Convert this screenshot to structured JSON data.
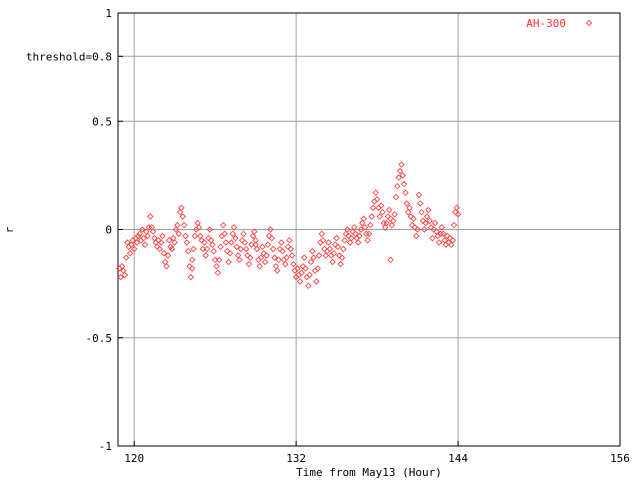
{
  "chart_data": {
    "type": "scatter",
    "title": "",
    "xlabel": "Time from May13 (Hour)",
    "ylabel": "r",
    "xlim": [
      118.8,
      156
    ],
    "ylim": [
      -1,
      1
    ],
    "x_ticks": [
      120,
      132,
      144,
      156
    ],
    "x_tick_labels": [
      "120",
      "132",
      "144",
      "156"
    ],
    "y_ticks": [
      -1,
      -0.5,
      0,
      0.5,
      0.8,
      1
    ],
    "y_tick_labels": [
      "-1",
      "-0.5",
      "0",
      "0.5",
      "threshold=0.8",
      "1"
    ],
    "grid": true,
    "legend_position": "top-right",
    "series": [
      {
        "name": "AH-300",
        "color": "#ff4444",
        "marker": "diamond",
        "points": [
          [
            118.9,
            -0.18
          ],
          [
            119.0,
            -0.22
          ],
          [
            119.1,
            -0.17
          ],
          [
            119.2,
            -0.19
          ],
          [
            119.3,
            -0.21
          ],
          [
            119.4,
            -0.13
          ],
          [
            119.5,
            -0.06
          ],
          [
            119.6,
            -0.08
          ],
          [
            119.7,
            -0.11
          ],
          [
            119.8,
            -0.07
          ],
          [
            119.9,
            -0.05
          ],
          [
            120.0,
            -0.09
          ],
          [
            120.1,
            -0.04
          ],
          [
            120.2,
            -0.06
          ],
          [
            120.3,
            -0.03
          ],
          [
            120.4,
            -0.02
          ],
          [
            120.5,
            -0.05
          ],
          [
            120.6,
            0.0
          ],
          [
            120.7,
            -0.04
          ],
          [
            120.8,
            -0.07
          ],
          [
            120.9,
            -0.01
          ],
          [
            121.0,
            -0.03
          ],
          [
            121.1,
            0.01
          ],
          [
            121.2,
            0.06
          ],
          [
            121.3,
            0.01
          ],
          [
            121.4,
            -0.01
          ],
          [
            121.5,
            -0.04
          ],
          [
            121.6,
            -0.06
          ],
          [
            121.7,
            -0.08
          ],
          [
            121.8,
            -0.05
          ],
          [
            121.9,
            -0.09
          ],
          [
            122.0,
            -0.06
          ],
          [
            122.1,
            -0.03
          ],
          [
            122.2,
            -0.11
          ],
          [
            122.3,
            -0.15
          ],
          [
            122.4,
            -0.17
          ],
          [
            122.5,
            -0.12
          ],
          [
            122.6,
            -0.05
          ],
          [
            122.7,
            -0.08
          ],
          [
            122.8,
            -0.09
          ],
          [
            122.9,
            -0.04
          ],
          [
            123.0,
            -0.06
          ],
          [
            123.1,
            0.0
          ],
          [
            123.2,
            0.02
          ],
          [
            123.3,
            -0.02
          ],
          [
            123.4,
            0.08
          ],
          [
            123.5,
            0.1
          ],
          [
            123.6,
            0.06
          ],
          [
            123.7,
            0.02
          ],
          [
            123.8,
            -0.03
          ],
          [
            123.9,
            -0.06
          ],
          [
            124.0,
            -0.1
          ],
          [
            124.1,
            -0.17
          ],
          [
            124.2,
            -0.22
          ],
          [
            124.3,
            -0.14
          ],
          [
            124.4,
            -0.09
          ],
          [
            124.5,
            -0.03
          ],
          [
            124.6,
            0.0
          ],
          [
            124.7,
            0.03
          ],
          [
            124.8,
            0.01
          ],
          [
            124.9,
            -0.03
          ],
          [
            125.0,
            -0.05
          ],
          [
            125.1,
            -0.09
          ],
          [
            125.2,
            -0.06
          ],
          [
            125.3,
            -0.12
          ],
          [
            125.4,
            -0.09
          ],
          [
            125.5,
            -0.04
          ],
          [
            125.6,
            0.0
          ],
          [
            125.7,
            -0.05
          ],
          [
            125.8,
            -0.07
          ],
          [
            125.9,
            -0.1
          ],
          [
            126.0,
            -0.14
          ],
          [
            126.1,
            -0.17
          ],
          [
            126.2,
            -0.2
          ],
          [
            126.3,
            -0.14
          ],
          [
            126.4,
            -0.08
          ],
          [
            126.5,
            -0.03
          ],
          [
            126.6,
            0.02
          ],
          [
            126.7,
            -0.02
          ],
          [
            126.8,
            -0.06
          ],
          [
            126.9,
            -0.1
          ],
          [
            127.0,
            -0.15
          ],
          [
            127.1,
            -0.11
          ],
          [
            127.2,
            -0.06
          ],
          [
            127.3,
            -0.02
          ],
          [
            127.4,
            0.01
          ],
          [
            127.5,
            -0.04
          ],
          [
            127.6,
            -0.08
          ],
          [
            127.7,
            -0.12
          ],
          [
            127.8,
            -0.14
          ],
          [
            127.9,
            -0.09
          ],
          [
            128.0,
            -0.05
          ],
          [
            128.1,
            -0.02
          ],
          [
            128.2,
            -0.06
          ],
          [
            128.3,
            -0.09
          ],
          [
            128.4,
            -0.12
          ],
          [
            128.5,
            -0.16
          ],
          [
            128.6,
            -0.13
          ],
          [
            128.7,
            -0.07
          ],
          [
            128.8,
            -0.03
          ],
          [
            128.9,
            -0.01
          ],
          [
            129.0,
            -0.05
          ],
          [
            129.1,
            -0.09
          ],
          [
            129.2,
            -0.14
          ],
          [
            129.3,
            -0.17
          ],
          [
            129.4,
            -0.13
          ],
          [
            129.5,
            -0.08
          ],
          [
            129.6,
            -0.11
          ],
          [
            129.7,
            -0.15
          ],
          [
            129.8,
            -0.12
          ],
          [
            129.9,
            -0.07
          ],
          [
            130.0,
            -0.03
          ],
          [
            130.1,
            0.0
          ],
          [
            130.2,
            -0.04
          ],
          [
            130.3,
            -0.09
          ],
          [
            130.4,
            -0.13
          ],
          [
            130.5,
            -0.17
          ],
          [
            130.6,
            -0.19
          ],
          [
            130.7,
            -0.14
          ],
          [
            130.8,
            -0.09
          ],
          [
            130.9,
            -0.06
          ],
          [
            131.0,
            -0.1
          ],
          [
            131.1,
            -0.14
          ],
          [
            131.2,
            -0.16
          ],
          [
            131.3,
            -0.13
          ],
          [
            131.4,
            -0.08
          ],
          [
            131.5,
            -0.05
          ],
          [
            131.6,
            -0.09
          ],
          [
            131.7,
            -0.12
          ],
          [
            131.8,
            -0.16
          ],
          [
            131.9,
            -0.19
          ],
          [
            132.0,
            -0.22
          ],
          [
            132.1,
            -0.18
          ],
          [
            132.2,
            -0.21
          ],
          [
            132.3,
            -0.24
          ],
          [
            132.4,
            -0.2
          ],
          [
            132.5,
            -0.17
          ],
          [
            132.6,
            -0.13
          ],
          [
            132.7,
            -0.18
          ],
          [
            132.8,
            -0.22
          ],
          [
            132.9,
            -0.26
          ],
          [
            133.0,
            -0.21
          ],
          [
            133.1,
            -0.15
          ],
          [
            133.2,
            -0.1
          ],
          [
            133.3,
            -0.13
          ],
          [
            133.4,
            -0.19
          ],
          [
            133.5,
            -0.24
          ],
          [
            133.6,
            -0.18
          ],
          [
            133.7,
            -0.12
          ],
          [
            133.8,
            -0.06
          ],
          [
            133.9,
            -0.02
          ],
          [
            134.0,
            -0.05
          ],
          [
            134.1,
            -0.09
          ],
          [
            134.2,
            -0.12
          ],
          [
            134.3,
            -0.1
          ],
          [
            134.4,
            -0.06
          ],
          [
            134.5,
            -0.09
          ],
          [
            134.6,
            -0.12
          ],
          [
            134.7,
            -0.15
          ],
          [
            134.8,
            -0.11
          ],
          [
            134.9,
            -0.07
          ],
          [
            135.0,
            -0.04
          ],
          [
            135.1,
            -0.08
          ],
          [
            135.2,
            -0.12
          ],
          [
            135.3,
            -0.16
          ],
          [
            135.4,
            -0.13
          ],
          [
            135.5,
            -0.09
          ],
          [
            135.6,
            -0.05
          ],
          [
            135.7,
            -0.02
          ],
          [
            135.8,
            0.0
          ],
          [
            135.9,
            -0.03
          ],
          [
            136.0,
            -0.06
          ],
          [
            136.1,
            -0.04
          ],
          [
            136.2,
            -0.01
          ],
          [
            136.3,
            0.01
          ],
          [
            136.4,
            -0.02
          ],
          [
            136.5,
            -0.04
          ],
          [
            136.6,
            -0.06
          ],
          [
            136.7,
            -0.03
          ],
          [
            136.8,
            0.0
          ],
          [
            136.9,
            0.03
          ],
          [
            137.0,
            0.05
          ],
          [
            137.1,
            0.01
          ],
          [
            137.2,
            -0.02
          ],
          [
            137.3,
            -0.05
          ],
          [
            137.4,
            -0.02
          ],
          [
            137.5,
            0.02
          ],
          [
            137.6,
            0.06
          ],
          [
            137.7,
            0.1
          ],
          [
            137.8,
            0.13
          ],
          [
            137.9,
            0.17
          ],
          [
            138.0,
            0.14
          ],
          [
            138.1,
            0.1
          ],
          [
            138.2,
            0.06
          ],
          [
            138.3,
            0.11
          ],
          [
            138.4,
            0.08
          ],
          [
            138.5,
            0.03
          ],
          [
            138.6,
            0.01
          ],
          [
            138.7,
            0.03
          ],
          [
            138.8,
            0.06
          ],
          [
            138.9,
            0.09
          ],
          [
            139.0,
            0.05
          ],
          [
            139.1,
            0.02
          ],
          [
            139.2,
            0.04
          ],
          [
            139.3,
            0.07
          ],
          [
            139.4,
            0.15
          ],
          [
            139.5,
            0.2
          ],
          [
            139.6,
            0.24
          ],
          [
            139.7,
            0.27
          ],
          [
            139.8,
            0.3
          ],
          [
            139.9,
            0.25
          ],
          [
            140.0,
            0.21
          ],
          [
            140.1,
            0.17
          ],
          [
            140.2,
            0.12
          ],
          [
            140.3,
            0.08
          ],
          [
            140.4,
            0.1
          ],
          [
            140.5,
            0.06
          ],
          [
            140.6,
            0.02
          ],
          [
            140.7,
            0.05
          ],
          [
            140.8,
            0.01
          ],
          [
            140.9,
            -0.03
          ],
          [
            141.0,
            0.0
          ],
          [
            141.1,
            0.16
          ],
          [
            141.2,
            0.12
          ],
          [
            141.3,
            0.08
          ],
          [
            141.4,
            0.04
          ],
          [
            141.5,
            0.0
          ],
          [
            141.6,
            0.03
          ],
          [
            141.7,
            0.06
          ],
          [
            141.8,
            0.09
          ],
          [
            141.9,
            0.04
          ],
          [
            142.0,
            0.01
          ],
          [
            142.1,
            -0.04
          ],
          [
            142.2,
            0.0
          ],
          [
            142.3,
            0.03
          ],
          [
            142.4,
            -0.01
          ],
          [
            142.5,
            -0.03
          ],
          [
            142.6,
            -0.06
          ],
          [
            142.7,
            -0.02
          ],
          [
            142.8,
            0.01
          ],
          [
            142.9,
            -0.02
          ],
          [
            143.0,
            -0.05
          ],
          [
            143.1,
            -0.07
          ],
          [
            143.2,
            -0.03
          ],
          [
            143.3,
            -0.06
          ],
          [
            143.4,
            -0.04
          ],
          [
            143.5,
            -0.07
          ],
          [
            143.6,
            -0.05
          ],
          [
            143.7,
            0.02
          ],
          [
            143.8,
            0.08
          ],
          [
            143.9,
            0.1
          ],
          [
            144.0,
            0.07
          ],
          [
            129.0,
            -0.07
          ],
          [
            139.0,
            -0.14
          ],
          [
            124.3,
            -0.18
          ]
        ]
      }
    ]
  }
}
